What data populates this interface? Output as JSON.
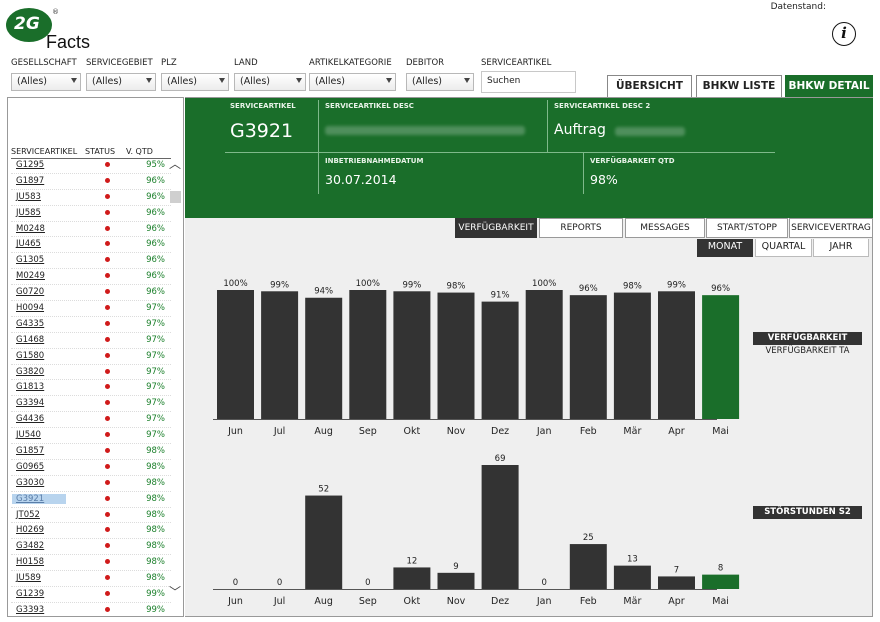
{
  "app": {
    "logo_mark": "2G",
    "logo_reg": "®",
    "logo_text": "Facts",
    "datenstand_label": "Datenstand:",
    "info_glyph": "i",
    "brand_green": "#1a6e2a",
    "bar_color": "#333333"
  },
  "filters": [
    {
      "label": "GESELLSCHAFT",
      "value": "(Alles)"
    },
    {
      "label": "SERVICEGEBIET",
      "value": "(Alles)"
    },
    {
      "label": "PLZ",
      "value": "(Alles)"
    },
    {
      "label": "LAND",
      "value": "(Alles)"
    },
    {
      "label": "ARTIKELKATEGORIE",
      "value": "(Alles)"
    },
    {
      "label": "DEBITOR",
      "value": "(Alles)"
    }
  ],
  "search": {
    "label": "SERVICEARTIKEL",
    "value": "Suchen"
  },
  "top_tabs": [
    {
      "label": "ÜBERSICHT",
      "active": false
    },
    {
      "label": "BHKW LISTE",
      "active": false
    },
    {
      "label": "BHKW DETAIL",
      "active": true
    }
  ],
  "list": {
    "headers": [
      "SERVICEARTIKEL",
      "STATUS",
      "V. QTD"
    ],
    "rows": [
      {
        "id": "G1295",
        "pct": "95%"
      },
      {
        "id": "G1897",
        "pct": "96%"
      },
      {
        "id": "JU583",
        "pct": "96%"
      },
      {
        "id": "JU585",
        "pct": "96%"
      },
      {
        "id": "M0248",
        "pct": "96%"
      },
      {
        "id": "JU465",
        "pct": "96%"
      },
      {
        "id": "G1305",
        "pct": "96%"
      },
      {
        "id": "M0249",
        "pct": "96%"
      },
      {
        "id": "G0720",
        "pct": "96%"
      },
      {
        "id": "H0094",
        "pct": "97%"
      },
      {
        "id": "G4335",
        "pct": "97%"
      },
      {
        "id": "G1468",
        "pct": "97%"
      },
      {
        "id": "G1580",
        "pct": "97%"
      },
      {
        "id": "G3820",
        "pct": "97%"
      },
      {
        "id": "G1813",
        "pct": "97%"
      },
      {
        "id": "G3394",
        "pct": "97%"
      },
      {
        "id": "G4436",
        "pct": "97%"
      },
      {
        "id": "JU540",
        "pct": "97%"
      },
      {
        "id": "G1857",
        "pct": "98%"
      },
      {
        "id": "G0965",
        "pct": "98%"
      },
      {
        "id": "G3030",
        "pct": "98%"
      },
      {
        "id": "G3921",
        "pct": "98%",
        "selected": true
      },
      {
        "id": "JT052",
        "pct": "98%"
      },
      {
        "id": "H0269",
        "pct": "98%"
      },
      {
        "id": "G3482",
        "pct": "98%"
      },
      {
        "id": "H0158",
        "pct": "98%"
      },
      {
        "id": "JU589",
        "pct": "98%"
      },
      {
        "id": "G1239",
        "pct": "99%"
      },
      {
        "id": "G3393",
        "pct": "99%"
      }
    ]
  },
  "detail": {
    "serviceartikel_label": "SERVICEARTIKEL",
    "serviceartikel_value": "G3921",
    "desc_label": "SERVICEARTIKEL DESC",
    "desc2_label": "SERVICEARTIKEL DESC 2",
    "desc2_value": "Auftrag",
    "inbetrieb_label": "INBETRIEBNAHMEDATUM",
    "inbetrieb_value": "30.07.2014",
    "verf_label": "VERFÜGBARKEIT QTD",
    "verf_value": "98%"
  },
  "sub_tabs": [
    {
      "label": "VERFÜGBARKEIT",
      "active": true
    },
    {
      "label": "REPORTS",
      "active": false
    },
    {
      "label": "MESSAGES",
      "active": false
    },
    {
      "label": "START/STOPP",
      "active": false
    },
    {
      "label": "SERVICEVERTRAG",
      "active": false
    }
  ],
  "period_tabs": [
    {
      "label": "MONAT",
      "active": true
    },
    {
      "label": "QUARTAL",
      "active": false
    },
    {
      "label": "JAHR",
      "active": false
    }
  ],
  "legend": {
    "verf_box": "VERFÜGBARKEIT",
    "verf_sub": "VERFÜGBARKEIT TA",
    "stoer_box": "STÖRSTUNDEN S2"
  },
  "chart_data": [
    {
      "type": "bar",
      "title": "",
      "categories": [
        "Jun",
        "Jul",
        "Aug",
        "Sep",
        "Okt",
        "Nov",
        "Dez",
        "Jan",
        "Feb",
        "Mär",
        "Apr",
        "Mai"
      ],
      "values": [
        100,
        99,
        94,
        100,
        99,
        98,
        91,
        100,
        96,
        98,
        99,
        96
      ],
      "labels": [
        "100%",
        "99%",
        "94%",
        "100%",
        "99%",
        "98%",
        "91%",
        "100%",
        "96%",
        "98%",
        "99%",
        "96%"
      ],
      "ylim": [
        0,
        100
      ],
      "highlight_index": 11,
      "series_colors": {
        "default": "#333333",
        "highlight": "#1a6e2a"
      }
    },
    {
      "type": "bar",
      "title": "",
      "categories": [
        "Jun",
        "Jul",
        "Aug",
        "Sep",
        "Okt",
        "Nov",
        "Dez",
        "Jan",
        "Feb",
        "Mär",
        "Apr",
        "Mai"
      ],
      "values": [
        0,
        0,
        52,
        0,
        12,
        9,
        69,
        0,
        25,
        13,
        7,
        8
      ],
      "labels": [
        "0",
        "0",
        "52",
        "0",
        "12",
        "9",
        "69",
        "0",
        "25",
        "13",
        "7",
        "8"
      ],
      "ylim": [
        0,
        69
      ],
      "highlight_index": 11,
      "series_colors": {
        "default": "#333333",
        "highlight": "#1a6e2a"
      }
    }
  ]
}
